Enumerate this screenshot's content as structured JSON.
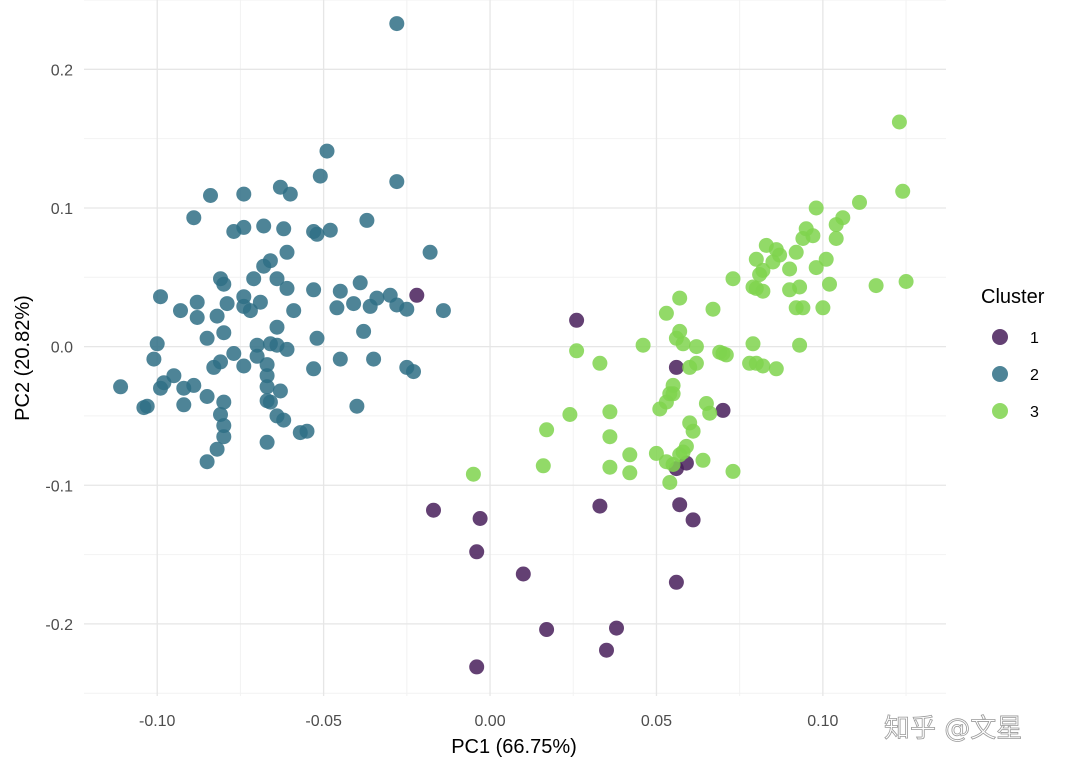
{
  "chart_data": {
    "type": "scatter",
    "title": "",
    "xlabel": "PC1 (66.75%)",
    "ylabel": "PC2 (20.82%)",
    "xlim": [
      -0.122,
      0.137
    ],
    "ylim": [
      -0.252,
      0.25
    ],
    "x_ticks": [
      -0.1,
      -0.05,
      0.0,
      0.05,
      0.1
    ],
    "x_tick_labels": [
      "-0.10",
      "-0.05",
      "0.00",
      "0.05",
      "0.10"
    ],
    "y_ticks": [
      -0.2,
      -0.1,
      0.0,
      0.1,
      0.2
    ],
    "y_tick_labels": [
      "-0.2",
      "-0.1",
      "0.0",
      "0.1",
      "0.2"
    ],
    "grid": true,
    "legend": {
      "title": "Cluster",
      "position": "right"
    },
    "series": [
      {
        "name": "1",
        "color": "#481F5A",
        "points": [
          [
            -0.022,
            0.037
          ],
          [
            0.026,
            0.019
          ],
          [
            -0.017,
            -0.118
          ],
          [
            -0.003,
            -0.124
          ],
          [
            -0.004,
            -0.148
          ],
          [
            0.01,
            -0.164
          ],
          [
            0.017,
            -0.204
          ],
          [
            0.035,
            -0.219
          ],
          [
            0.038,
            -0.203
          ],
          [
            -0.004,
            -0.231
          ],
          [
            0.033,
            -0.115
          ],
          [
            0.056,
            -0.17
          ],
          [
            0.057,
            -0.114
          ],
          [
            0.061,
            -0.125
          ],
          [
            0.056,
            -0.088
          ],
          [
            0.059,
            -0.084
          ],
          [
            0.056,
            -0.015
          ],
          [
            0.07,
            -0.046
          ]
        ]
      },
      {
        "name": "2",
        "color": "#2F6E85",
        "points": [
          [
            -0.028,
            0.233
          ],
          [
            -0.049,
            0.141
          ],
          [
            -0.051,
            0.123
          ],
          [
            -0.028,
            0.119
          ],
          [
            -0.063,
            0.115
          ],
          [
            -0.084,
            0.109
          ],
          [
            -0.074,
            0.11
          ],
          [
            -0.06,
            0.11
          ],
          [
            -0.089,
            0.093
          ],
          [
            -0.037,
            0.091
          ],
          [
            -0.068,
            0.087
          ],
          [
            -0.062,
            0.085
          ],
          [
            -0.074,
            0.086
          ],
          [
            -0.077,
            0.083
          ],
          [
            -0.053,
            0.083
          ],
          [
            -0.048,
            0.084
          ],
          [
            -0.052,
            0.081
          ],
          [
            -0.018,
            0.068
          ],
          [
            -0.061,
            0.068
          ],
          [
            -0.066,
            0.062
          ],
          [
            -0.068,
            0.058
          ],
          [
            -0.064,
            0.049
          ],
          [
            -0.071,
            0.049
          ],
          [
            -0.08,
            0.045
          ],
          [
            -0.081,
            0.049
          ],
          [
            -0.039,
            0.046
          ],
          [
            -0.045,
            0.04
          ],
          [
            -0.053,
            0.041
          ],
          [
            -0.061,
            0.042
          ],
          [
            -0.074,
            0.036
          ],
          [
            -0.074,
            0.029
          ],
          [
            -0.079,
            0.031
          ],
          [
            -0.069,
            0.032
          ],
          [
            -0.034,
            0.035
          ],
          [
            -0.03,
            0.037
          ],
          [
            -0.028,
            0.03
          ],
          [
            -0.025,
            0.027
          ],
          [
            -0.014,
            0.026
          ],
          [
            -0.059,
            0.026
          ],
          [
            -0.046,
            0.028
          ],
          [
            -0.041,
            0.031
          ],
          [
            -0.036,
            0.029
          ],
          [
            -0.072,
            0.026
          ],
          [
            -0.099,
            0.036
          ],
          [
            -0.093,
            0.026
          ],
          [
            -0.088,
            0.032
          ],
          [
            -0.088,
            0.021
          ],
          [
            -0.082,
            0.022
          ],
          [
            -0.064,
            0.014
          ],
          [
            -0.08,
            0.01
          ],
          [
            -0.085,
            0.006
          ],
          [
            -0.052,
            0.006
          ],
          [
            -0.038,
            0.011
          ],
          [
            -0.07,
            0.001
          ],
          [
            -0.066,
            0.002
          ],
          [
            -0.064,
            0.001
          ],
          [
            -0.061,
            -0.002
          ],
          [
            -0.1,
            0.002
          ],
          [
            -0.077,
            -0.005
          ],
          [
            -0.07,
            -0.007
          ],
          [
            -0.101,
            -0.009
          ],
          [
            -0.081,
            -0.011
          ],
          [
            -0.045,
            -0.009
          ],
          [
            -0.035,
            -0.009
          ],
          [
            -0.074,
            -0.014
          ],
          [
            -0.083,
            -0.015
          ],
          [
            -0.067,
            -0.013
          ],
          [
            -0.053,
            -0.016
          ],
          [
            -0.025,
            -0.015
          ],
          [
            -0.023,
            -0.018
          ],
          [
            -0.095,
            -0.021
          ],
          [
            -0.098,
            -0.026
          ],
          [
            -0.099,
            -0.03
          ],
          [
            -0.092,
            -0.03
          ],
          [
            -0.089,
            -0.028
          ],
          [
            -0.111,
            -0.029
          ],
          [
            -0.067,
            -0.021
          ],
          [
            -0.067,
            -0.029
          ],
          [
            -0.067,
            -0.039
          ],
          [
            -0.066,
            -0.04
          ],
          [
            -0.063,
            -0.032
          ],
          [
            -0.085,
            -0.036
          ],
          [
            -0.08,
            -0.04
          ],
          [
            -0.103,
            -0.043
          ],
          [
            -0.104,
            -0.044
          ],
          [
            -0.092,
            -0.042
          ],
          [
            -0.04,
            -0.043
          ],
          [
            -0.081,
            -0.049
          ],
          [
            -0.064,
            -0.05
          ],
          [
            -0.062,
            -0.053
          ],
          [
            -0.08,
            -0.057
          ],
          [
            -0.057,
            -0.062
          ],
          [
            -0.055,
            -0.061
          ],
          [
            -0.08,
            -0.065
          ],
          [
            -0.067,
            -0.069
          ],
          [
            -0.082,
            -0.074
          ],
          [
            -0.085,
            -0.083
          ]
        ]
      },
      {
        "name": "3",
        "color": "#7FD34E",
        "points": [
          [
            0.123,
            0.162
          ],
          [
            0.124,
            0.112
          ],
          [
            0.125,
            0.047
          ],
          [
            0.116,
            0.044
          ],
          [
            0.111,
            0.104
          ],
          [
            0.104,
            0.088
          ],
          [
            0.106,
            0.093
          ],
          [
            0.104,
            0.078
          ],
          [
            0.101,
            0.063
          ],
          [
            0.102,
            0.045
          ],
          [
            0.1,
            0.028
          ],
          [
            0.098,
            0.1
          ],
          [
            0.097,
            0.08
          ],
          [
            0.095,
            0.085
          ],
          [
            0.094,
            0.078
          ],
          [
            0.098,
            0.057
          ],
          [
            0.092,
            0.068
          ],
          [
            0.09,
            0.056
          ],
          [
            0.09,
            0.041
          ],
          [
            0.093,
            0.043
          ],
          [
            0.092,
            0.028
          ],
          [
            0.094,
            0.028
          ],
          [
            0.093,
            0.001
          ],
          [
            0.086,
            0.07
          ],
          [
            0.087,
            0.066
          ],
          [
            0.085,
            0.061
          ],
          [
            0.083,
            0.073
          ],
          [
            0.082,
            0.055
          ],
          [
            0.081,
            0.052
          ],
          [
            0.08,
            0.063
          ],
          [
            0.079,
            0.043
          ],
          [
            0.08,
            0.042
          ],
          [
            0.082,
            0.04
          ],
          [
            0.079,
            0.002
          ],
          [
            0.08,
            -0.012
          ],
          [
            0.082,
            -0.014
          ],
          [
            0.086,
            -0.016
          ],
          [
            0.073,
            0.049
          ],
          [
            0.067,
            0.027
          ],
          [
            0.057,
            0.035
          ],
          [
            0.053,
            0.024
          ],
          [
            0.057,
            0.011
          ],
          [
            0.056,
            0.006
          ],
          [
            0.058,
            0.002
          ],
          [
            0.062,
            0.0
          ],
          [
            0.046,
            0.001
          ],
          [
            0.069,
            -0.004
          ],
          [
            0.07,
            -0.005
          ],
          [
            0.071,
            -0.006
          ],
          [
            0.078,
            -0.012
          ],
          [
            0.062,
            -0.012
          ],
          [
            0.06,
            -0.015
          ],
          [
            0.055,
            -0.028
          ],
          [
            0.054,
            -0.034
          ],
          [
            0.053,
            -0.04
          ],
          [
            0.055,
            -0.034
          ],
          [
            0.051,
            -0.045
          ],
          [
            0.065,
            -0.041
          ],
          [
            0.066,
            -0.048
          ],
          [
            0.06,
            -0.055
          ],
          [
            0.061,
            -0.061
          ],
          [
            0.058,
            -0.076
          ],
          [
            0.057,
            -0.078
          ],
          [
            0.059,
            -0.072
          ],
          [
            0.05,
            -0.077
          ],
          [
            0.053,
            -0.083
          ],
          [
            0.055,
            -0.085
          ],
          [
            0.064,
            -0.082
          ],
          [
            0.042,
            -0.078
          ],
          [
            0.036,
            -0.065
          ],
          [
            0.042,
            -0.091
          ],
          [
            0.036,
            -0.087
          ],
          [
            0.054,
            -0.098
          ],
          [
            0.073,
            -0.09
          ],
          [
            0.026,
            -0.003
          ],
          [
            0.033,
            -0.012
          ],
          [
            0.036,
            -0.047
          ],
          [
            0.024,
            -0.049
          ],
          [
            0.017,
            -0.06
          ],
          [
            0.016,
            -0.086
          ],
          [
            -0.005,
            -0.092
          ]
        ]
      }
    ]
  },
  "watermark": "知乎 @文星"
}
